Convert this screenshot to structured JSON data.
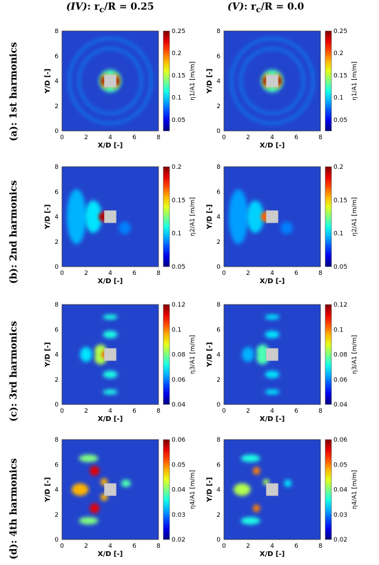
{
  "columns": [
    {
      "title": "(IV): r_c/R = 0.25",
      "roman": "(IV)",
      "expr": ": r",
      "sub": "c",
      "rest": "/R = 0.25"
    },
    {
      "title": "(V): r_c/R = 0.0",
      "roman": "(V)",
      "expr": ": r",
      "sub": "c",
      "rest": "/R = 0.0"
    }
  ],
  "rows": [
    {
      "label": "(a): 1st harmonics",
      "cbar_label": "η1/A1 [m/m]",
      "cbar_sub": "1",
      "clim": [
        0.025,
        0.25
      ],
      "cbar_ticks": [
        "0.25",
        "0.2",
        "0.15",
        "0.1",
        "0.05"
      ]
    },
    {
      "label": "(b): 2nd harmonics",
      "cbar_label": "η2/A1 [m/m]",
      "cbar_sub": "2",
      "clim": [
        0.05,
        0.2
      ],
      "cbar_ticks": [
        "0.2",
        "0.15",
        "0.1",
        "0.05"
      ]
    },
    {
      "label": "(c): 3rd harmonics",
      "cbar_label": "η3/A1 [m/m]",
      "cbar_sub": "3",
      "clim": [
        0.04,
        0.12
      ],
      "cbar_ticks": [
        "0.12",
        "0.1",
        "0.08",
        "0.06",
        "0.04"
      ]
    },
    {
      "label": "(d): 4th harmonics",
      "cbar_label": "η4/A1 [m/m]",
      "cbar_sub": "4",
      "clim": [
        0.02,
        0.06
      ],
      "cbar_ticks": [
        "0.06",
        "0.05",
        "0.04",
        "0.03",
        "0.02"
      ]
    }
  ],
  "chart_data": {
    "type": "heatmap",
    "xlabel": "X/D [-]",
    "ylabel": "Y/D [-]",
    "xlim": [
      0,
      8
    ],
    "ylim": [
      0,
      8
    ],
    "x_ticks": [
      "0",
      "2",
      "4",
      "6",
      "8"
    ],
    "y_ticks": [
      "0",
      "2",
      "4",
      "6",
      "8"
    ],
    "structure_center": [
      4,
      4
    ],
    "panels": [
      {
        "row": "(a)",
        "col": "(IV)",
        "background": 0.04,
        "peak": 0.25
      },
      {
        "row": "(a)",
        "col": "(V)",
        "background": 0.04,
        "peak": 0.25
      },
      {
        "row": "(b)",
        "col": "(IV)",
        "background": 0.06,
        "peak": 0.2
      },
      {
        "row": "(b)",
        "col": "(V)",
        "background": 0.06,
        "peak": 0.18
      },
      {
        "row": "(c)",
        "col": "(IV)",
        "background": 0.045,
        "peak": 0.09
      },
      {
        "row": "(c)",
        "col": "(V)",
        "background": 0.045,
        "peak": 0.08
      },
      {
        "row": "(d)",
        "col": "(IV)",
        "background": 0.022,
        "peak": 0.05
      },
      {
        "row": "(d)",
        "col": "(V)",
        "background": 0.022,
        "peak": 0.045
      }
    ],
    "colormap": "jet",
    "bg_color": "#2244cc",
    "structure_color": "#cccccc"
  }
}
